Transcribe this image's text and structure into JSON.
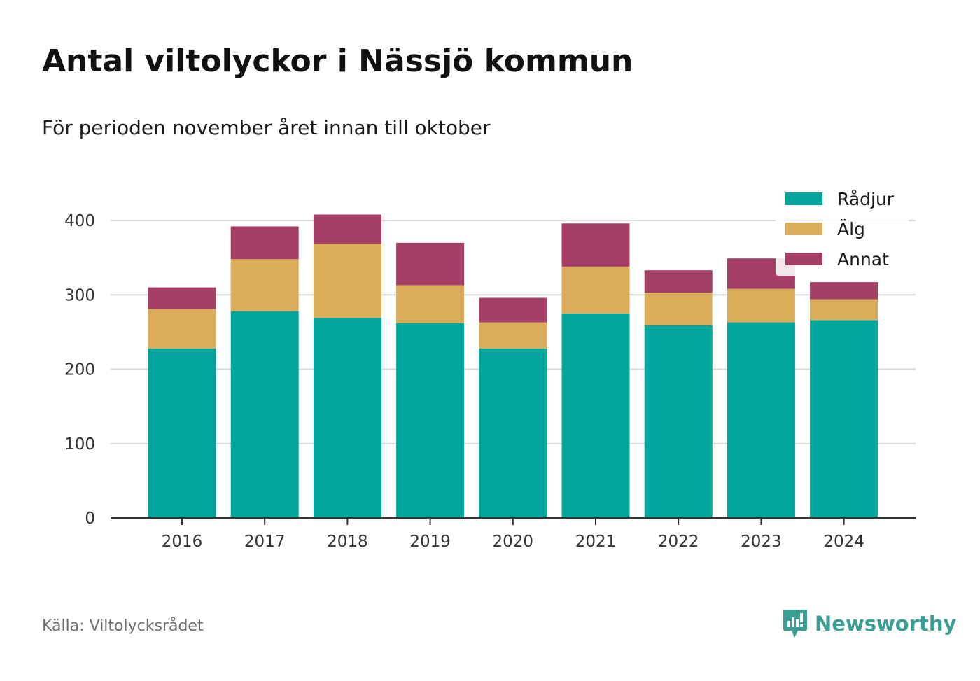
{
  "header": {
    "title": "Antal viltolyckor i Nässjö kommun",
    "subtitle": "För perioden november året innan till oktober"
  },
  "footer": {
    "source": "Källa: Viltolycksrådet",
    "brand": "Newsworthy",
    "brand_color": "#3a9e94"
  },
  "chart_data": {
    "type": "bar",
    "stacked": true,
    "categories": [
      "2016",
      "2017",
      "2018",
      "2019",
      "2020",
      "2021",
      "2022",
      "2023",
      "2024"
    ],
    "series": [
      {
        "name": "Rådjur",
        "color": "#00a59b",
        "values": [
          228,
          278,
          269,
          262,
          228,
          275,
          259,
          263,
          266
        ]
      },
      {
        "name": "Älg",
        "color": "#dbac5a",
        "values": [
          53,
          70,
          100,
          51,
          35,
          63,
          44,
          45,
          28
        ]
      },
      {
        "name": "Annat",
        "color": "#a63f67",
        "values": [
          29,
          44,
          39,
          57,
          33,
          58,
          30,
          41,
          23
        ]
      }
    ],
    "yticks": [
      0,
      100,
      200,
      300,
      400
    ],
    "ylim": [
      0,
      420
    ],
    "grid": true,
    "legend_position": "top-right"
  }
}
